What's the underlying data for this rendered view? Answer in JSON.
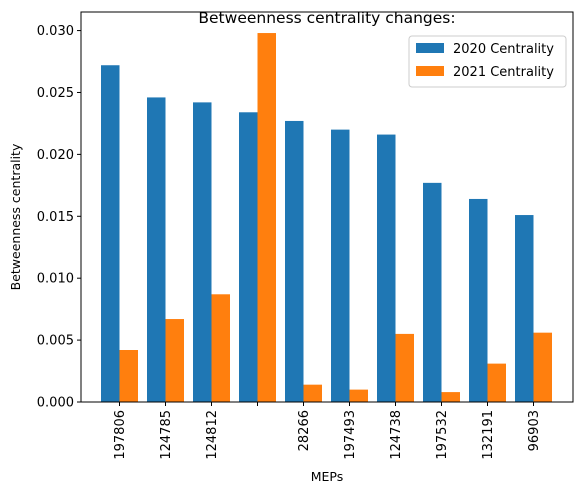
{
  "chart_data": {
    "type": "bar",
    "title": "Betweenness centrality changes:",
    "xlabel": "MEPs",
    "ylabel": "Betweenness centrality",
    "categories": [
      "197806",
      "124785",
      "124812",
      "",
      "28266",
      "197493",
      "124738",
      "197532",
      "132191",
      "96903"
    ],
    "series": [
      {
        "name": "2020 Centrality",
        "color": "#1f77b4",
        "values": [
          0.0272,
          0.0246,
          0.0242,
          0.0234,
          0.0227,
          0.022,
          0.0216,
          0.0177,
          0.0164,
          0.0151
        ]
      },
      {
        "name": "2021 Centrality",
        "color": "#ff7f0e",
        "values": [
          0.0042,
          0.0067,
          0.0087,
          0.0298,
          0.0014,
          0.001,
          0.0055,
          0.0008,
          0.0031,
          0.0056
        ]
      }
    ],
    "ylim": [
      0,
      0.0315
    ],
    "yticks": [
      "0.000",
      "0.005",
      "0.010",
      "0.015",
      "0.020",
      "0.025",
      "0.030"
    ],
    "legend_position": "top-right",
    "grid": false
  }
}
